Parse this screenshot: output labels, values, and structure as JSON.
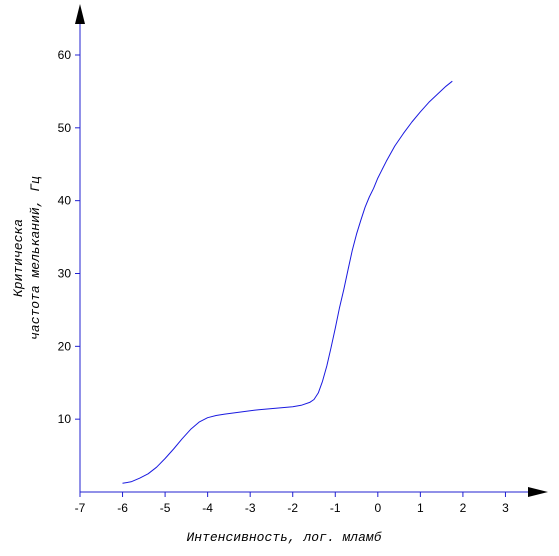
{
  "chart_data": {
    "type": "line",
    "title": "",
    "xlabel": "Интенсивность, лог. мламб",
    "ylabel_lines": [
      "Критическа",
      "частота мельканий,  Гц"
    ],
    "xlim": [
      -7,
      4
    ],
    "ylim": [
      0,
      67
    ],
    "x_ticks": [
      -7,
      -6,
      -5,
      -4,
      -3,
      -2,
      -1,
      0,
      1,
      2,
      3
    ],
    "y_ticks": [
      10,
      20,
      30,
      40,
      50,
      60
    ],
    "grid": false,
    "legend": "none",
    "colors": {
      "line": "#1a1ae0",
      "axis": "#2020d0",
      "text": "#000000"
    },
    "series": [
      {
        "x": [
          -6.0,
          -5.8,
          -5.6,
          -5.4,
          -5.2,
          -5.0,
          -4.8,
          -4.6,
          -4.4,
          -4.2,
          -4.0,
          -3.8,
          -3.6,
          -3.2,
          -2.8,
          -2.4,
          -2.0,
          -1.8,
          -1.6,
          -1.5,
          -1.4,
          -1.3,
          -1.2,
          -1.1,
          -1.0,
          -0.9,
          -0.8,
          -0.7,
          -0.6,
          -0.5,
          -0.4,
          -0.3,
          -0.2,
          -0.1,
          0.0,
          0.2,
          0.4,
          0.6,
          0.8,
          1.0,
          1.2,
          1.4,
          1.6,
          1.75
        ],
        "y": [
          1.2,
          1.4,
          1.9,
          2.5,
          3.4,
          4.6,
          5.9,
          7.3,
          8.6,
          9.6,
          10.2,
          10.5,
          10.7,
          11.0,
          11.3,
          11.5,
          11.7,
          11.9,
          12.3,
          12.7,
          13.6,
          15.2,
          17.3,
          19.8,
          22.5,
          25.3,
          27.8,
          30.5,
          33.2,
          35.4,
          37.3,
          39.1,
          40.5,
          41.7,
          43.1,
          45.4,
          47.5,
          49.2,
          50.8,
          52.2,
          53.5,
          54.6,
          55.7,
          56.4
        ]
      }
    ]
  }
}
